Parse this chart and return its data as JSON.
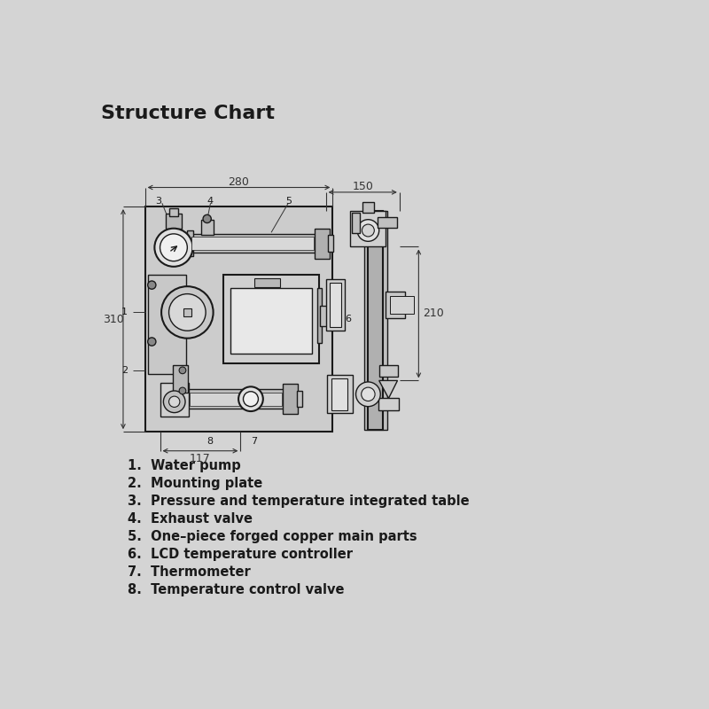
{
  "title": "Structure Chart",
  "background_color": "#d4d4d4",
  "line_color": "#1a1a1a",
  "dim_color": "#333333",
  "legend_items": [
    "1.  Water pump",
    "2.  Mounting plate",
    "3.  Pressure and temperature integrated table",
    "4.  Exhaust valve",
    "5.  One–piece forged copper main parts",
    "6.  LCD temperature controller",
    "7.  Thermometer",
    "8.  Temperature control valve"
  ],
  "dim_280": "280",
  "dim_310": "310",
  "dim_117": "117",
  "dim_150": "150",
  "dim_210": "210",
  "labels": [
    "3",
    "4",
    "5",
    "6",
    "1",
    "2",
    "7",
    "8"
  ]
}
